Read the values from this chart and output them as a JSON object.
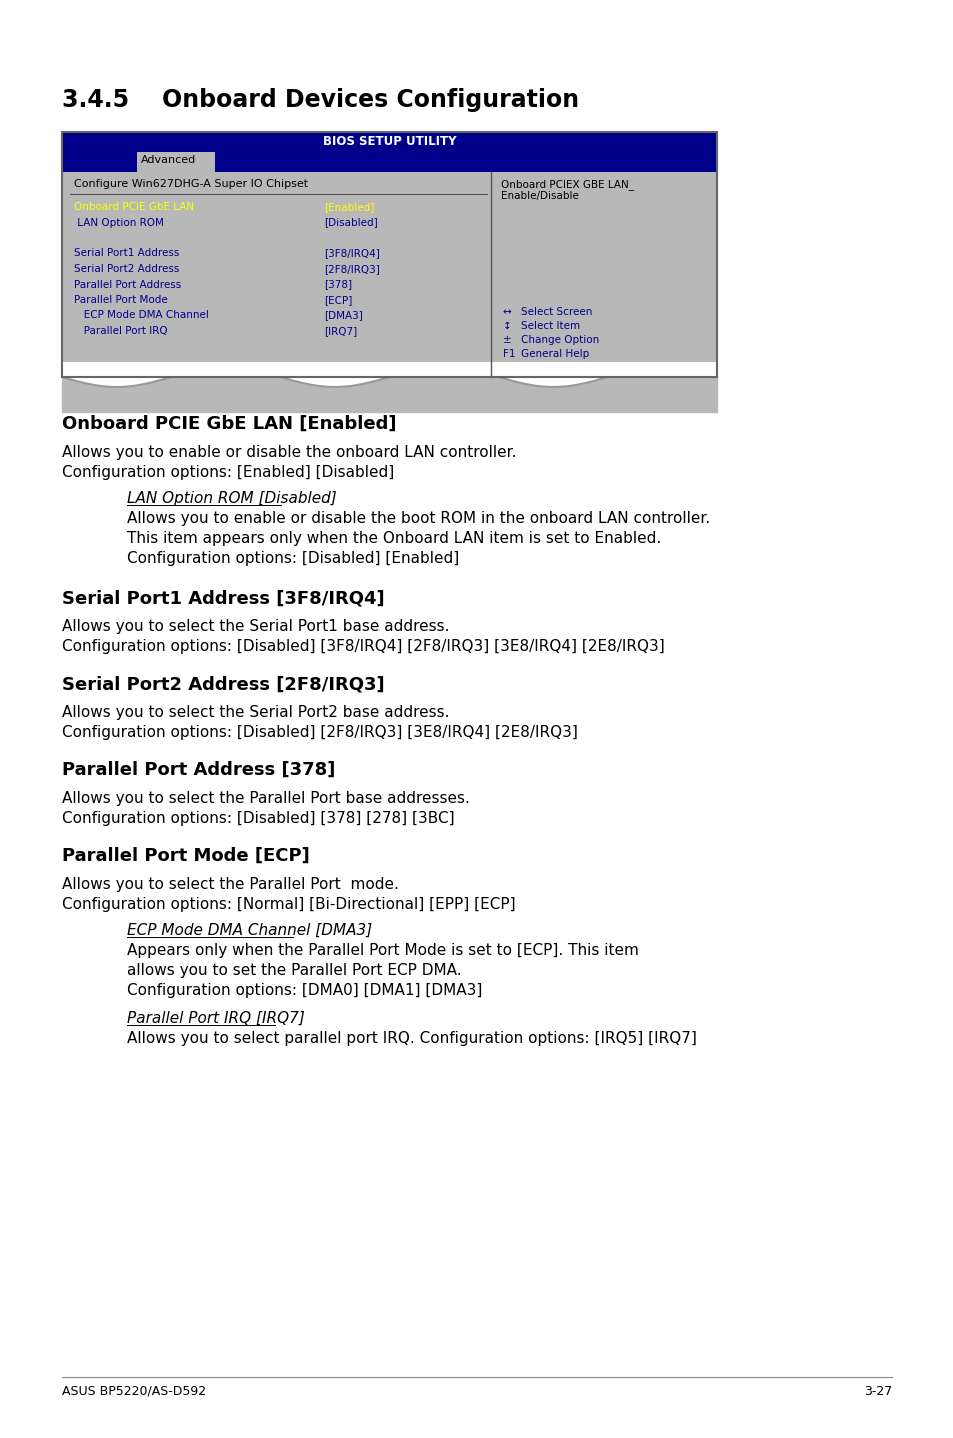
{
  "page_title": "3.4.5    Onboard Devices Configuration",
  "bios_title": "BIOS SETUP UTILITY",
  "tab_label": "Advanced",
  "bios_subtitle": "Configure Win627DHG-A Super IO Chipset",
  "bios_right_text1": "Onboard PCIEX GBE LAN_",
  "bios_right_text2": "Enable/Disable",
  "bios_items": [
    [
      "Onboard PCIE GbE LAN",
      "[Enabled]",
      true
    ],
    [
      " LAN Option ROM",
      "[Disabled]",
      false
    ],
    [
      "",
      "",
      false
    ],
    [
      "Serial Port1 Address",
      "[3F8/IRQ4]",
      false
    ],
    [
      "Serial Port2 Address",
      "[2F8/IRQ3]",
      false
    ],
    [
      "Parallel Port Address",
      "[378]",
      false
    ],
    [
      "Parallel Port Mode",
      "[ECP]",
      false
    ],
    [
      "   ECP Mode DMA Channel",
      "[DMA3]",
      false
    ],
    [
      "   Parallel Port IRQ",
      "[IRQ7]",
      false
    ]
  ],
  "bios_nav": [
    [
      "↔→",
      "Select Screen"
    ],
    [
      "↑↓",
      "Select Item"
    ],
    [
      "±",
      "Change Option"
    ],
    [
      "F1",
      "General Help"
    ]
  ],
  "bios_nav_syms": [
    "↔",
    "↕",
    "±",
    "F1"
  ],
  "sections": [
    {
      "heading": "Onboard PCIE GbE LAN [Enabled]",
      "paragraphs": [
        "Allows you to enable or disable the onboard LAN controller.",
        "Configuration options: [Enabled] [Disabled]"
      ],
      "subsections": [
        {
          "subheading": "LAN Option ROM [Disabled]",
          "text": [
            "Allows you to enable or disable the boot ROM in the onboard LAN controller.",
            "This item appears only when the Onboard LAN item is set to Enabled.",
            "Configuration options: [Disabled] [Enabled]"
          ]
        }
      ]
    },
    {
      "heading": "Serial Port1 Address [3F8/IRQ4]",
      "paragraphs": [
        "Allows you to select the Serial Port1 base address.",
        "Configuration options: [Disabled] [3F8/IRQ4] [2F8/IRQ3] [3E8/IRQ4] [2E8/IRQ3]"
      ],
      "subsections": []
    },
    {
      "heading": "Serial Port2 Address [2F8/IRQ3]",
      "paragraphs": [
        "Allows you to select the Serial Port2 base address.",
        "Configuration options: [Disabled] [2F8/IRQ3] [3E8/IRQ4] [2E8/IRQ3]"
      ],
      "subsections": []
    },
    {
      "heading": "Parallel Port Address [378]",
      "paragraphs": [
        "Allows you to select the Parallel Port base addresses.",
        "Configuration options: [Disabled] [378] [278] [3BC]"
      ],
      "subsections": []
    },
    {
      "heading": "Parallel Port Mode [ECP]",
      "paragraphs": [
        "Allows you to select the Parallel Port  mode.",
        "Configuration options: [Normal] [Bi-Directional] [EPP] [ECP]"
      ],
      "subsections": [
        {
          "subheading": "ECP Mode DMA Channel [DMA3]",
          "text": [
            "Appears only when the Parallel Port Mode is set to [ECP]. This item",
            "allows you to set the Parallel Port ECP DMA.",
            "Configuration options: [DMA0] [DMA1] [DMA3]"
          ]
        },
        {
          "subheading": "Parallel Port IRQ [IRQ7]",
          "text": [
            "Allows you to select parallel port IRQ. Configuration options: [IRQ5] [IRQ7]"
          ]
        }
      ]
    }
  ],
  "footer_left": "ASUS BP5220/AS-D592",
  "footer_right": "3-27",
  "bg_color": "#ffffff",
  "bios_bg": "#b8b8b8",
  "bios_header_bg": "#00008b",
  "bios_header_fg": "#ffffff",
  "bios_item_fg": "#00008b",
  "bios_highlight_fg": "#ffff00",
  "bios_value_fg": "#ffff00"
}
